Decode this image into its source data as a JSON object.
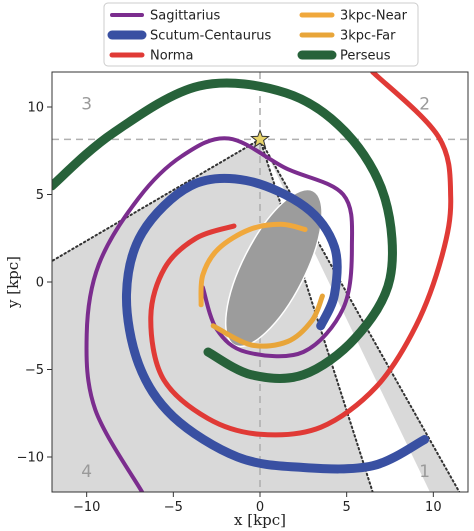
{
  "chart_data": {
    "type": "line",
    "xlabel": "x [kpc]",
    "ylabel": "y [kpc]",
    "xlim": [
      -12,
      12
    ],
    "ylim": [
      -12,
      12
    ],
    "xticks": [
      -10,
      -5,
      0,
      5,
      10
    ],
    "yticks": [
      -10,
      -5,
      0,
      5,
      10
    ],
    "legend_position": "top",
    "sun": {
      "x": 0,
      "y": 8.15,
      "color": "#e7d36a"
    },
    "reference_lines": {
      "x": 0,
      "y": 8.15,
      "color": "#b0b0b0",
      "style": "dashed"
    },
    "bar": {
      "center": [
        0.8,
        0.8
      ],
      "semi_major": 5.0,
      "semi_minor": 1.8,
      "angle_deg": 63,
      "color": "#9c9c9c"
    },
    "quadrant_labels": [
      {
        "text": "1",
        "x": 9.5,
        "y": -10.8
      },
      {
        "text": "2",
        "x": 9.5,
        "y": 10.2
      },
      {
        "text": "3",
        "x": -10,
        "y": 10.2
      },
      {
        "text": "4",
        "x": -10,
        "y": -10.8
      }
    ],
    "shaded_region": {
      "color": "#d9d9d9",
      "vertices": [
        [
          -12,
          1.2
        ],
        [
          0,
          8.15
        ],
        [
          6.5,
          -12
        ],
        [
          -12,
          -12
        ]
      ]
    },
    "sightlines": [
      {
        "from": [
          0,
          8.15
        ],
        "to": [
          -12,
          1.2
        ]
      },
      {
        "from": [
          0,
          8.15
        ],
        "to": [
          6.5,
          -12
        ]
      },
      {
        "from": [
          0,
          8.15
        ],
        "to": [
          11.5,
          -12
        ]
      }
    ],
    "sightline_band": {
      "color": "#d9d9d9",
      "vertices": [
        [
          0,
          8.15
        ],
        [
          9.8,
          -12
        ],
        [
          11.5,
          -12
        ]
      ]
    },
    "series": [
      {
        "name": "Sagittarius",
        "color": "#7b2d8e",
        "width": 4,
        "points": [
          [
            -6.8,
            -12
          ],
          [
            -9.5,
            -7.3
          ],
          [
            -10,
            -3
          ],
          [
            -9.3,
            1
          ],
          [
            -7,
            4.8
          ],
          [
            -4.5,
            7.2
          ],
          [
            -1.8,
            8.2
          ],
          [
            1.5,
            6.5
          ],
          [
            4.8,
            5
          ],
          [
            5.3,
            2
          ],
          [
            4.8,
            -1.5
          ],
          [
            2.5,
            -4
          ],
          [
            -0.8,
            -4
          ],
          [
            -2.5,
            -2.7
          ],
          [
            -3.3,
            -0.3
          ]
        ]
      },
      {
        "name": "Scutum-Centaurus",
        "color": "#3950a2",
        "width": 9,
        "points": [
          [
            9.5,
            -9
          ],
          [
            6.5,
            -10.5
          ],
          [
            2.5,
            -10.6
          ],
          [
            -1.3,
            -10
          ],
          [
            -5,
            -7.7
          ],
          [
            -7,
            -4.7
          ],
          [
            -7.7,
            -0.7
          ],
          [
            -6.8,
            2.8
          ],
          [
            -4,
            5.5
          ],
          [
            -0.8,
            5.8
          ],
          [
            2.6,
            4.3
          ],
          [
            4.3,
            2
          ],
          [
            4.3,
            -0.7
          ],
          [
            3.5,
            -2.5
          ]
        ]
      },
      {
        "name": "Norma",
        "color": "#e03a36",
        "width": 5,
        "points": [
          [
            6.5,
            12
          ],
          [
            10.3,
            8.3
          ],
          [
            11,
            4.8
          ],
          [
            10.5,
            1.5
          ],
          [
            9,
            -2.5
          ],
          [
            6.7,
            -6
          ],
          [
            3.5,
            -8.3
          ],
          [
            0,
            -8.7
          ],
          [
            -3,
            -7.8
          ],
          [
            -5.6,
            -5.5
          ],
          [
            -6.3,
            -2
          ],
          [
            -5.5,
            0.8
          ],
          [
            -3.7,
            2.5
          ],
          [
            -1.5,
            3.2
          ]
        ]
      },
      {
        "name": "3kpc-Near",
        "color": "#f0a83c",
        "width": 5,
        "points": [
          [
            -3.4,
            -1.3
          ],
          [
            -3.3,
            0.4
          ],
          [
            -2.4,
            1.9
          ],
          [
            -0.6,
            3
          ],
          [
            1.2,
            3.3
          ],
          [
            2.6,
            3
          ]
        ]
      },
      {
        "name": "3kpc-Far",
        "color": "#e8a539",
        "width": 5,
        "points": [
          [
            -2.7,
            -2.5
          ],
          [
            -0.5,
            -3.6
          ],
          [
            1.6,
            -3.4
          ],
          [
            3,
            -2.2
          ],
          [
            3.6,
            -0.8
          ]
        ]
      },
      {
        "name": "Perseus",
        "color": "#27623a",
        "width": 9,
        "points": [
          [
            -3,
            -4
          ],
          [
            -0.5,
            -5.3
          ],
          [
            2.5,
            -5.3
          ],
          [
            5.5,
            -3.2
          ],
          [
            7.5,
            0.2
          ],
          [
            7.2,
            4.8
          ],
          [
            5,
            8.5
          ],
          [
            1.5,
            10.8
          ],
          [
            -3.5,
            11.2
          ],
          [
            -8.5,
            8.5
          ],
          [
            -12,
            5.5
          ]
        ]
      }
    ]
  }
}
